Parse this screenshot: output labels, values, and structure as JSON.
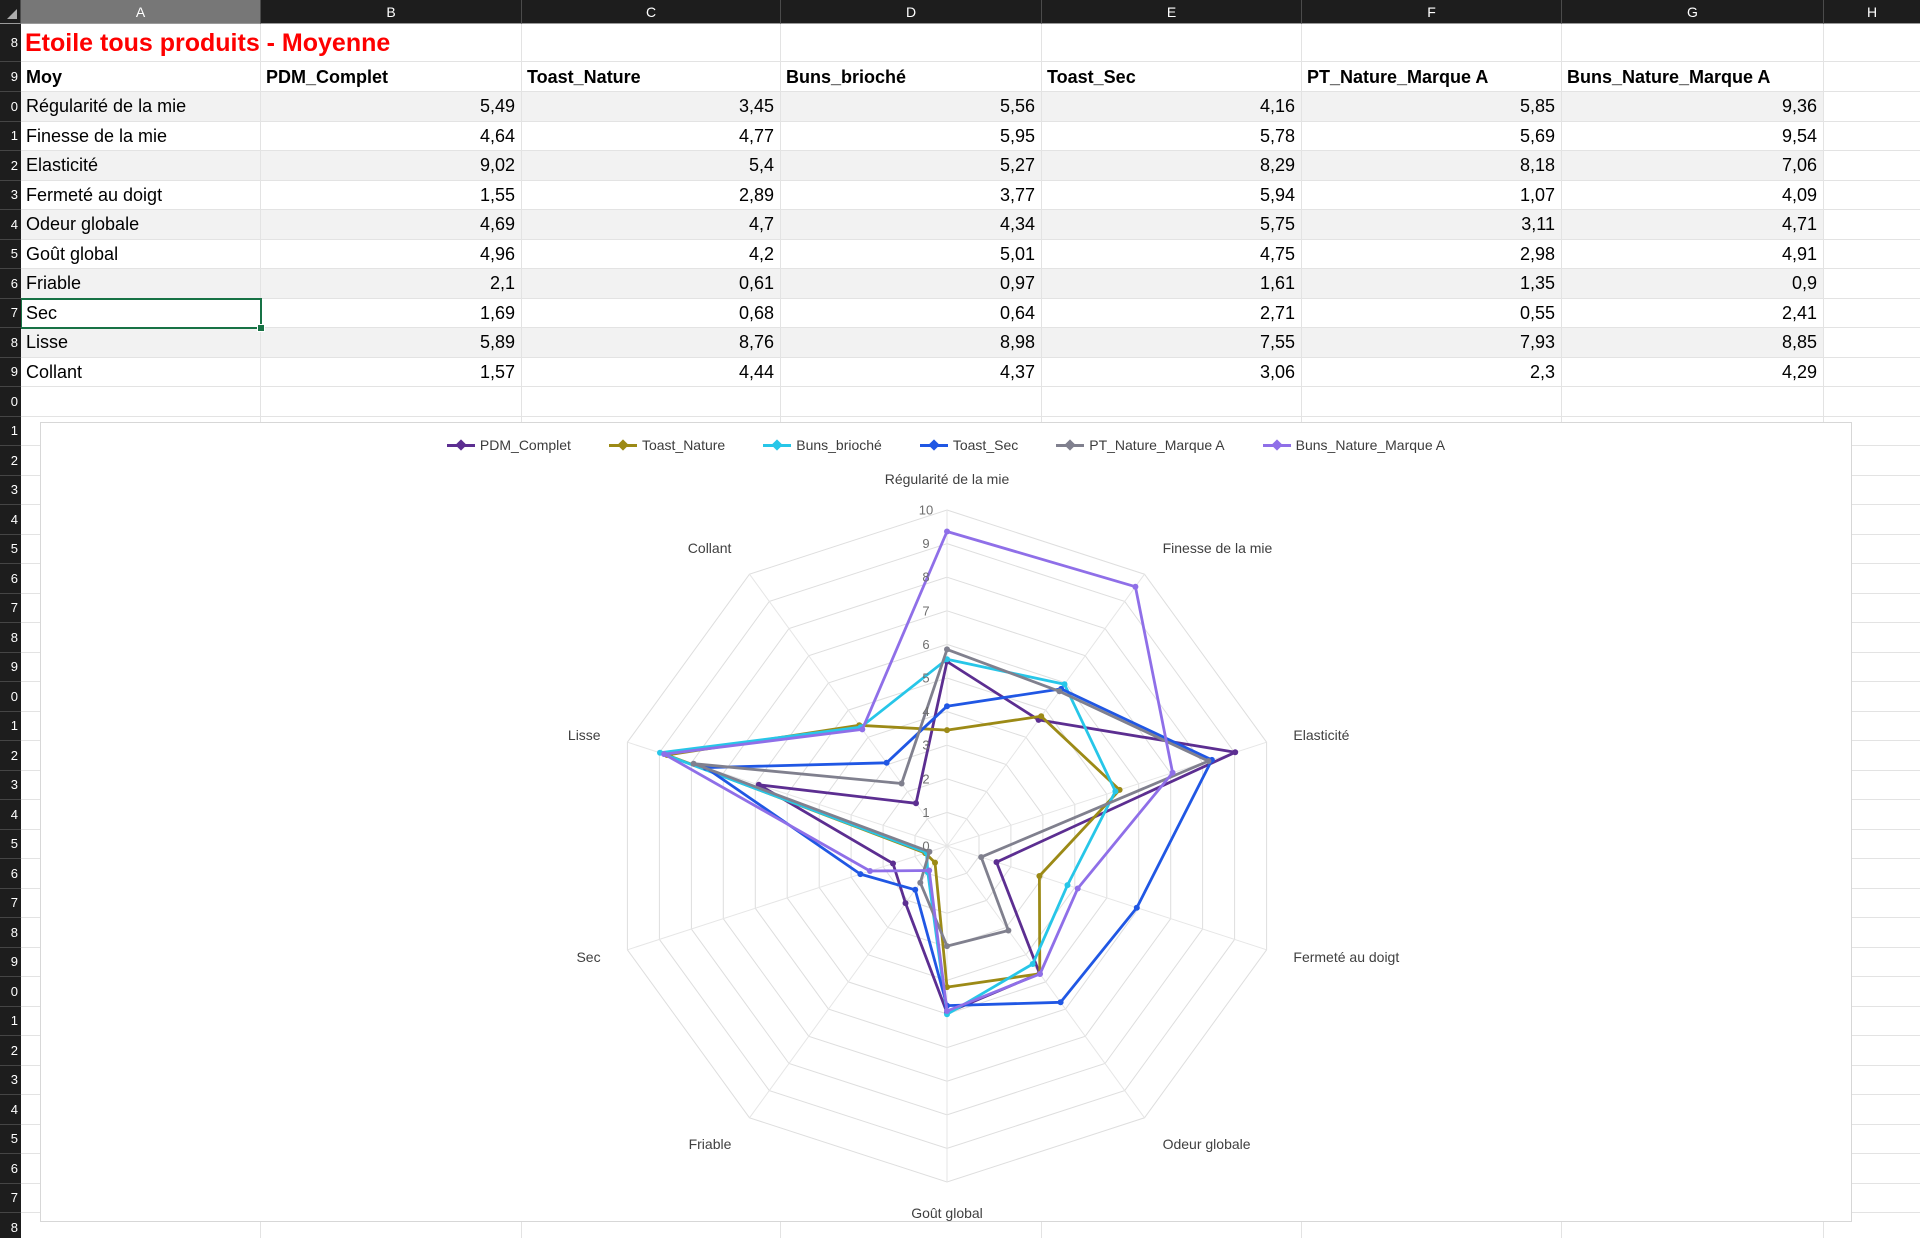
{
  "spreadsheet": {
    "title": "Etoile tous produits - Moyenne",
    "column_headers": [
      "A",
      "B",
      "C",
      "D",
      "E",
      "F",
      "G",
      "H"
    ],
    "active_column": "A",
    "row_numbers": [
      "8",
      "9",
      "0",
      "1",
      "2",
      "3",
      "4",
      "5",
      "6",
      "7",
      "8",
      "9",
      "0",
      "1",
      "2",
      "3",
      "4",
      "5",
      "6",
      "7",
      "8",
      "9",
      "0",
      "1",
      "2",
      "3",
      "4",
      "5",
      "6",
      "7",
      "8",
      "9",
      "0",
      "1",
      "2",
      "3",
      "4",
      "5",
      "6",
      "7",
      "8"
    ],
    "table": {
      "headers": [
        "Moy",
        "PDM_Complet",
        "Toast_Nature",
        "Buns_brioché",
        "Toast_Sec",
        "PT_Nature_Marque A",
        "Buns_Nature_Marque A"
      ],
      "rows": [
        {
          "label": "Régularité de la mie",
          "values": [
            "5,49",
            "3,45",
            "5,56",
            "4,16",
            "5,85",
            "9,36"
          ]
        },
        {
          "label": "Finesse de la mie",
          "values": [
            "4,64",
            "4,77",
            "5,95",
            "5,78",
            "5,69",
            "9,54"
          ]
        },
        {
          "label": "Elasticité",
          "values": [
            "9,02",
            "5,4",
            "5,27",
            "8,29",
            "8,18",
            "7,06"
          ]
        },
        {
          "label": "Fermeté au doigt",
          "values": [
            "1,55",
            "2,89",
            "3,77",
            "5,94",
            "1,07",
            "4,09"
          ]
        },
        {
          "label": "Odeur globale",
          "values": [
            "4,69",
            "4,7",
            "4,34",
            "5,75",
            "3,11",
            "4,71"
          ]
        },
        {
          "label": "Goût global",
          "values": [
            "4,96",
            "4,2",
            "5,01",
            "4,75",
            "2,98",
            "4,91"
          ]
        },
        {
          "label": "Friable",
          "values": [
            "2,1",
            "0,61",
            "0,97",
            "1,61",
            "1,35",
            "0,9"
          ]
        },
        {
          "label": "Sec",
          "values": [
            "1,69",
            "0,68",
            "0,64",
            "2,71",
            "0,55",
            "2,41"
          ]
        },
        {
          "label": "Lisse",
          "values": [
            "5,89",
            "8,76",
            "8,98",
            "7,55",
            "7,93",
            "8,85"
          ]
        },
        {
          "label": "Collant",
          "values": [
            "1,57",
            "4,44",
            "4,37",
            "3,06",
            "2,3",
            "4,29"
          ]
        }
      ],
      "active_cell_label": "Sec"
    },
    "theme": {
      "header_bg": "#1d1d1d",
      "header_text": "#ffffff",
      "active_column_bg": "#777777",
      "band_fill": "#f2f2f2",
      "gridline": "#e3e3e3",
      "selection_border": "#177245",
      "title_color": "#fe0000"
    }
  },
  "chart_data": {
    "type": "radar",
    "categories": [
      "Régularité de la mie",
      "Finesse de la mie",
      "Elasticité",
      "Fermeté au doigt",
      "Odeur globale",
      "Goût global",
      "Friable",
      "Sec",
      "Lisse",
      "Collant"
    ],
    "series": [
      {
        "name": "PDM_Complet",
        "color": "#5C2E91",
        "values": [
          5.49,
          4.64,
          9.02,
          1.55,
          4.69,
          4.96,
          2.1,
          1.69,
          5.89,
          1.57
        ]
      },
      {
        "name": "Toast_Nature",
        "color": "#9C8A16",
        "values": [
          3.45,
          4.77,
          5.4,
          2.89,
          4.7,
          4.2,
          0.61,
          0.68,
          8.76,
          4.44
        ]
      },
      {
        "name": "Buns_brioché",
        "color": "#27C6E8",
        "values": [
          5.56,
          5.95,
          5.27,
          3.77,
          4.34,
          5.01,
          0.97,
          0.64,
          8.98,
          4.37
        ]
      },
      {
        "name": "Toast_Sec",
        "color": "#2057E4",
        "values": [
          4.16,
          5.78,
          8.29,
          5.94,
          5.75,
          4.75,
          1.61,
          2.71,
          7.55,
          3.06
        ]
      },
      {
        "name": "PT_Nature_Marque A",
        "color": "#80808E",
        "values": [
          5.85,
          5.69,
          8.18,
          1.07,
          3.11,
          2.98,
          1.35,
          0.55,
          7.93,
          2.3
        ]
      },
      {
        "name": "Buns_Nature_Marque A",
        "color": "#8F6FE8",
        "values": [
          9.36,
          9.54,
          7.06,
          4.09,
          4.71,
          4.91,
          0.9,
          2.41,
          8.85,
          4.29
        ]
      }
    ],
    "ticks": [
      "0",
      "1",
      "2",
      "3",
      "4",
      "5",
      "6",
      "7",
      "8",
      "9",
      "10"
    ],
    "rmin": 0,
    "rmax": 10,
    "legend_position": "top",
    "grid": true
  }
}
